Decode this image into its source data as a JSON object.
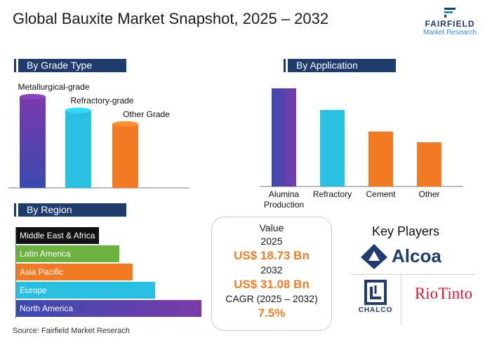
{
  "title": "Global Bauxite Market Snapshot, 2025 – 2032",
  "logo": {
    "line1": "FAIRFIELD",
    "line2": "Market Research"
  },
  "grade_section": {
    "heading": "By Grade Type"
  },
  "application_section": {
    "heading": "By Application"
  },
  "region_section": {
    "heading": "By Region"
  },
  "chart_data": [
    {
      "type": "bar",
      "title": "By Grade Type",
      "categories": [
        "Metallurgical-grade",
        "Refractory-grade",
        "Other Grade"
      ],
      "values": [
        100,
        85,
        70
      ],
      "colors": [
        "#5b2d8e",
        "#29bfe0",
        "#f07b24"
      ],
      "ylim": [
        0,
        100
      ],
      "grid": false
    },
    {
      "type": "bar",
      "title": "By Application",
      "categories": [
        "Alumina Production",
        "Refractory",
        "Cement",
        "Other"
      ],
      "category_lines": [
        [
          "Alumina",
          "Production"
        ],
        [
          "Refractory"
        ],
        [
          "Cement"
        ],
        [
          "Other"
        ]
      ],
      "values": [
        100,
        78,
        56,
        45
      ],
      "colors": [
        "#5b2d8e",
        "#29bfe0",
        "#f07b24",
        "#f07b24"
      ],
      "ylim": [
        0,
        100
      ],
      "grid": false
    },
    {
      "type": "bar",
      "orientation": "horizontal",
      "title": "By Region",
      "categories": [
        "Middle East & Africa",
        "Latin America",
        "Asia Pacific",
        "Europe",
        "North America"
      ],
      "values": [
        45,
        56,
        63,
        75,
        100
      ],
      "colors": [
        "#111111",
        "#6bb33e",
        "#f07b24",
        "#29bfe0",
        "#5b2d8e"
      ],
      "xlim": [
        0,
        100
      ],
      "grid": false
    }
  ],
  "value_box": {
    "label": "Value",
    "year1": "2025",
    "value1": "US$ 18.73 Bn",
    "year2": "2032",
    "value2": "US$ 31.08 Bn",
    "cagr_label": "CAGR (2025 – 2032)",
    "cagr_value": "7.5%"
  },
  "key_players": {
    "heading": "Key Players",
    "players": [
      "Alcoa",
      "CHALCO",
      "RioTinto"
    ]
  },
  "source": "Source: Fairfield Market Reserach",
  "colors": {
    "navy": "#1f3c6e",
    "orange": "#f07b24",
    "cyan": "#29bfe0",
    "purple": "#5b2d8e",
    "green": "#6bb33e"
  }
}
